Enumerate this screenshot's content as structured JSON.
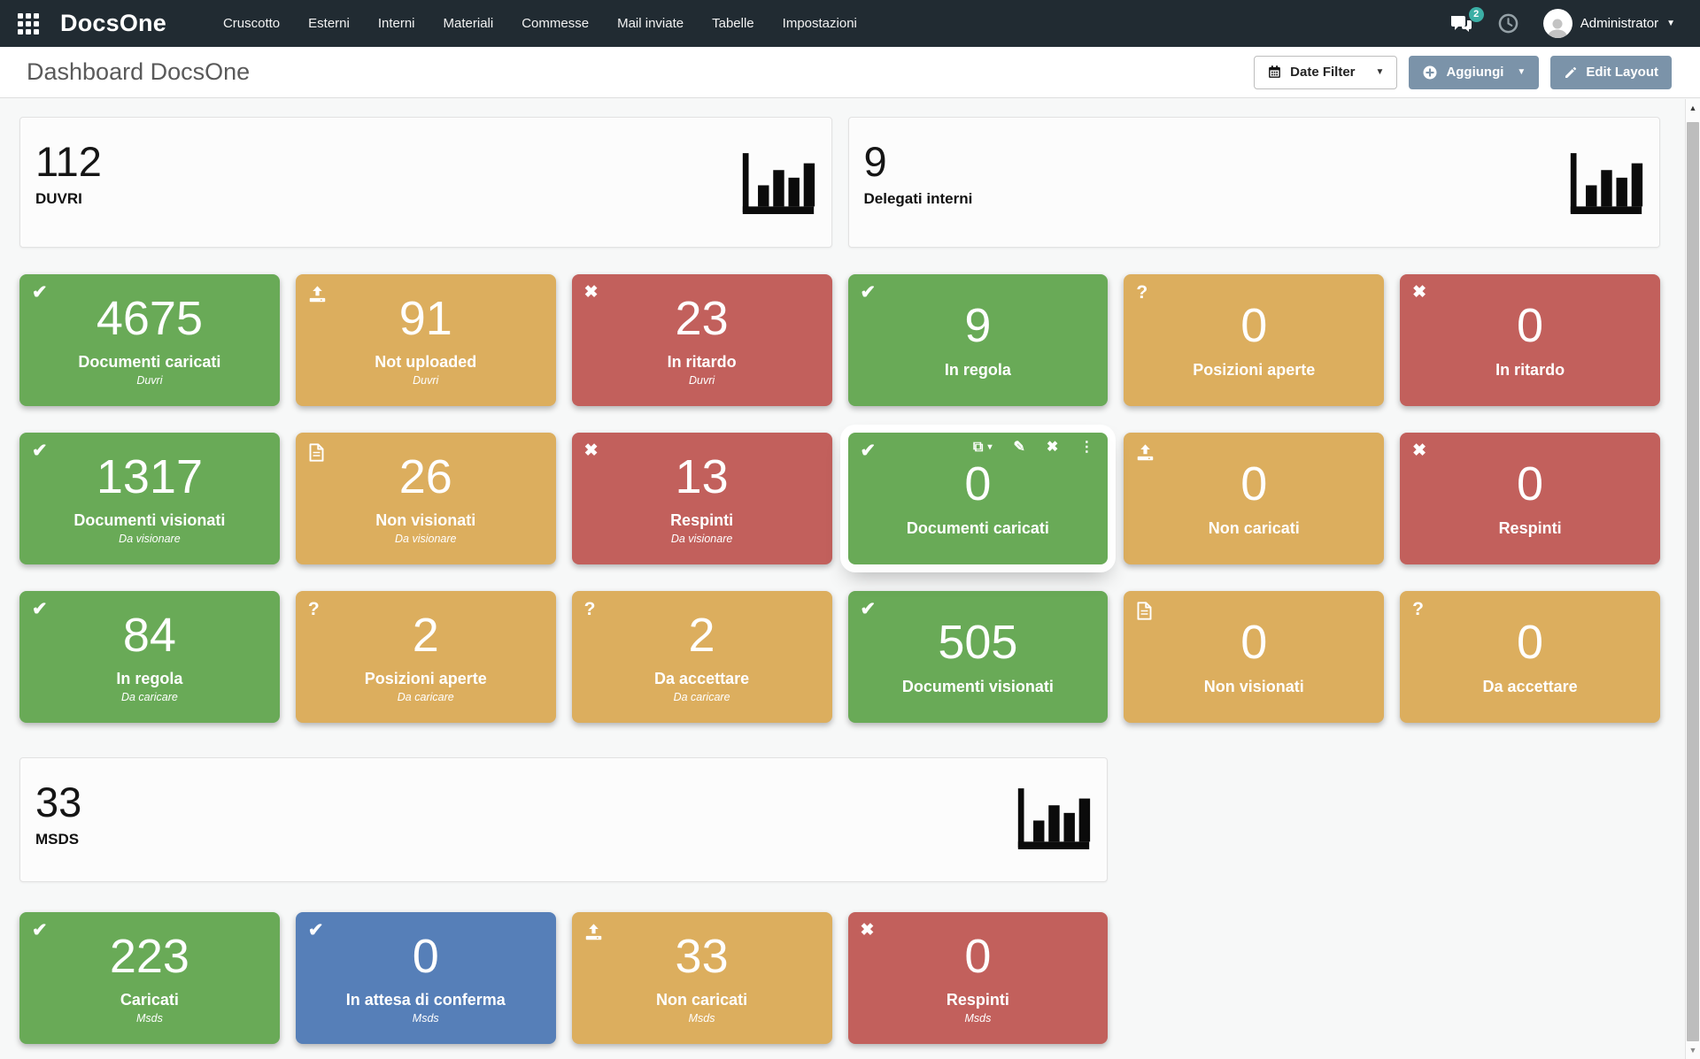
{
  "palette": {
    "green": "#69aa57",
    "yellow": "#dcae5e",
    "red": "#c2605c",
    "blue": "#567fb8",
    "badge_teal": "#3bafa5",
    "button_steel": "#7b93a9",
    "navbar_dark": "#212b32"
  },
  "navbar": {
    "brand": "DocsOne",
    "apps_icon": "grid",
    "menu": [
      "Cruscotto",
      "Esterni",
      "Interni",
      "Materiali",
      "Commesse",
      "Mail inviate",
      "Tabelle",
      "Impostazioni"
    ],
    "messages_icon": "chat-bubbles",
    "messages_badge": "2",
    "history_icon": "clock",
    "user_icon": "avatar",
    "user": "Administrator"
  },
  "header": {
    "title": "Dashboard DocsOne",
    "date_filter": {
      "label": "Date Filter",
      "icon": "calendar"
    },
    "add_button": {
      "label": "Aggiungi",
      "icon": "plus-circle"
    },
    "edit_layout_button": {
      "label": "Edit Layout",
      "icon": "pencil"
    }
  },
  "summary": {
    "duvri": {
      "value": "112",
      "label": "DUVRI",
      "icon": "bar-chart"
    },
    "delegati": {
      "value": "9",
      "label": "Delegati interni",
      "icon": "bar-chart"
    },
    "msds": {
      "value": "33",
      "label": "MSDS",
      "icon": "bar-chart"
    }
  },
  "hover_tools": [
    "clone",
    "edit",
    "delete",
    "more"
  ],
  "tile_rows": [
    [
      {
        "color": "green",
        "icon": "check",
        "value": "4675",
        "label": "Documenti caricati",
        "sublabel": "Duvri"
      },
      {
        "color": "yellow",
        "icon": "upload",
        "value": "91",
        "label": "Not uploaded",
        "sublabel": "Duvri"
      },
      {
        "color": "red",
        "icon": "x",
        "value": "23",
        "label": "In ritardo",
        "sublabel": "Duvri"
      },
      {
        "color": "green",
        "icon": "check",
        "value": "9",
        "label": "In regola"
      },
      {
        "color": "yellow",
        "icon": "question",
        "value": "0",
        "label": "Posizioni aperte"
      },
      {
        "color": "red",
        "icon": "x",
        "value": "0",
        "label": "In ritardo"
      }
    ],
    [
      {
        "color": "green",
        "icon": "check",
        "value": "1317",
        "label": "Documenti visionati",
        "sublabel": "Da visionare"
      },
      {
        "color": "yellow",
        "icon": "document",
        "value": "26",
        "label": "Non visionati",
        "sublabel": "Da visionare"
      },
      {
        "color": "red",
        "icon": "x",
        "value": "13",
        "label": "Respinti",
        "sublabel": "Da visionare"
      },
      {
        "color": "green",
        "icon": "check",
        "value": "0",
        "label": "Documenti caricati",
        "hovered": true
      },
      {
        "color": "yellow",
        "icon": "upload",
        "value": "0",
        "label": "Non caricati"
      },
      {
        "color": "red",
        "icon": "x",
        "value": "0",
        "label": "Respinti"
      }
    ],
    [
      {
        "color": "green",
        "icon": "check",
        "value": "84",
        "label": "In regola",
        "sublabel": "Da caricare"
      },
      {
        "color": "yellow",
        "icon": "question",
        "value": "2",
        "label": "Posizioni aperte",
        "sublabel": "Da caricare"
      },
      {
        "color": "yellow",
        "icon": "question",
        "value": "2",
        "label": "Da accettare",
        "sublabel": "Da caricare"
      },
      {
        "color": "green",
        "icon": "check",
        "value": "505",
        "label": "Documenti visionati"
      },
      {
        "color": "yellow",
        "icon": "document",
        "value": "0",
        "label": "Non visionati"
      },
      {
        "color": "yellow",
        "icon": "question",
        "value": "0",
        "label": "Da accettare"
      }
    ],
    [
      {
        "color": "green",
        "icon": "check",
        "value": "223",
        "label": "Caricati",
        "sublabel": "Msds"
      },
      {
        "color": "blue",
        "icon": "check",
        "value": "0",
        "label": "In attesa di conferma",
        "sublabel": "Msds"
      },
      {
        "color": "yellow",
        "icon": "upload",
        "value": "33",
        "label": "Non caricati",
        "sublabel": "Msds"
      },
      {
        "color": "red",
        "icon": "x",
        "value": "0",
        "label": "Respinti",
        "sublabel": "Msds"
      }
    ]
  ]
}
